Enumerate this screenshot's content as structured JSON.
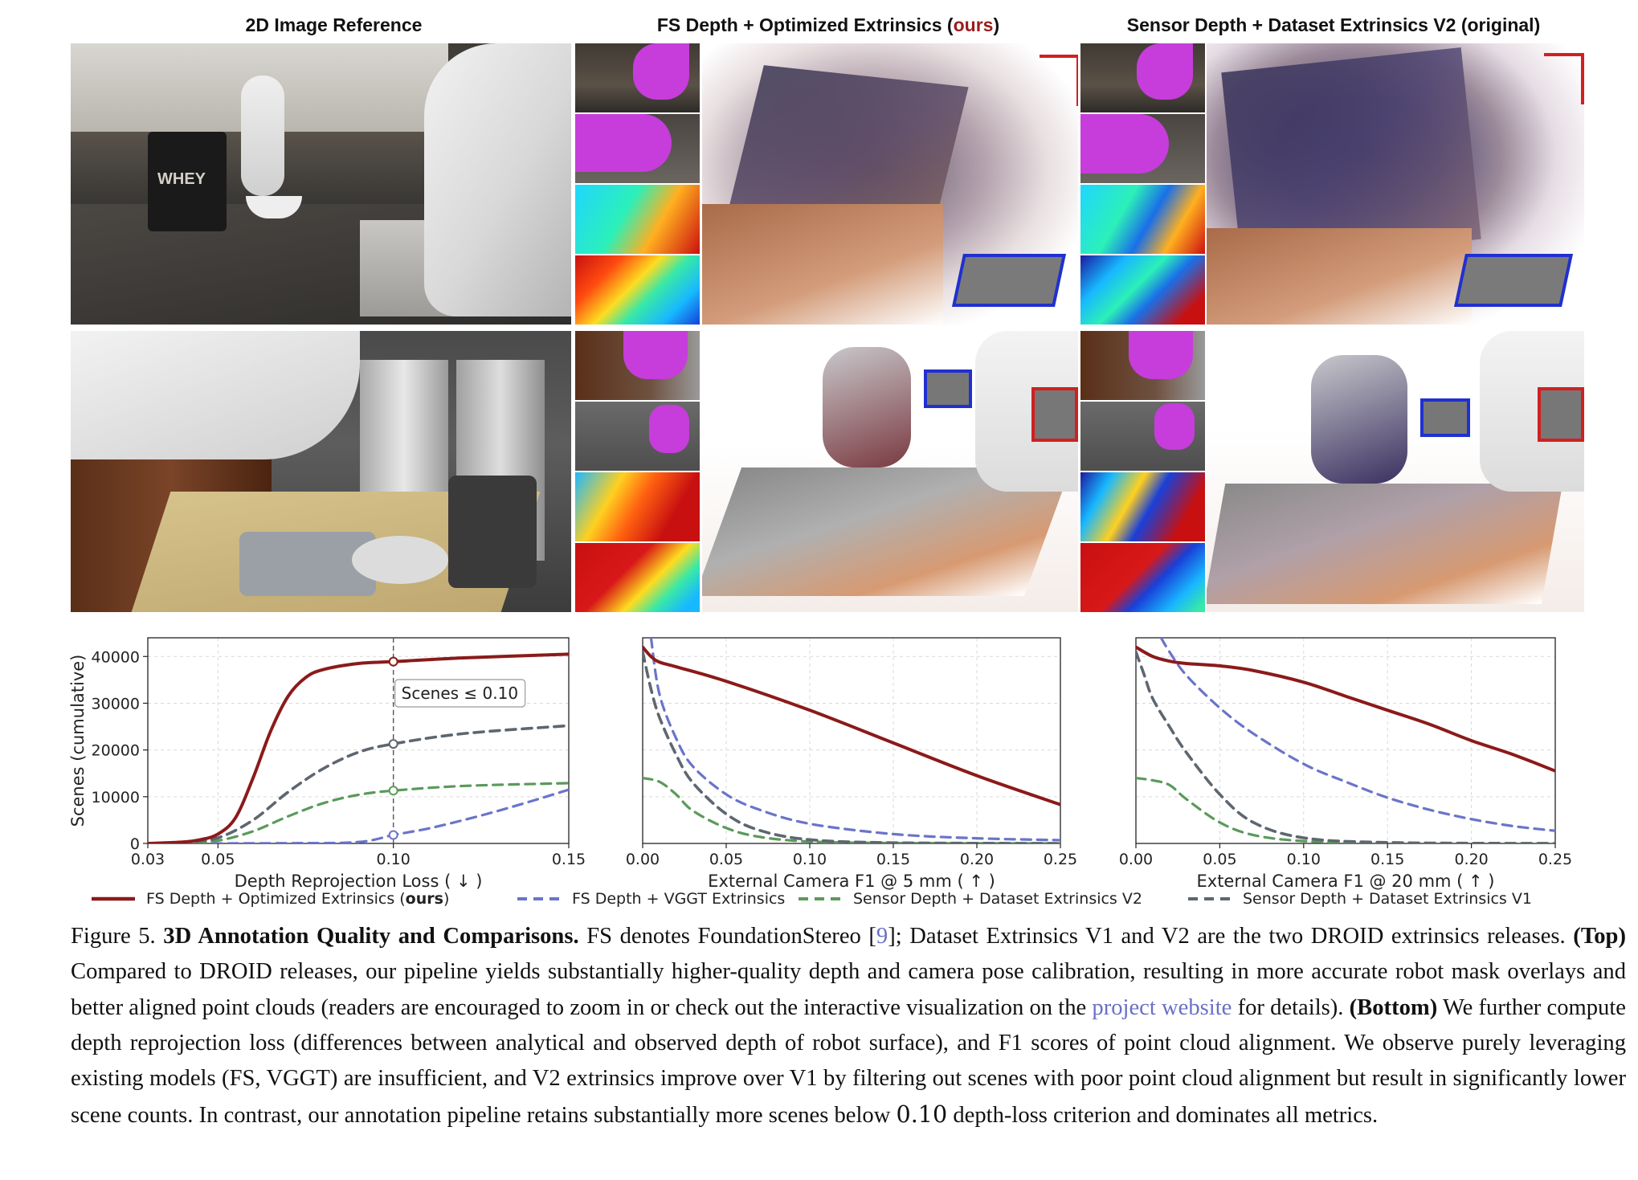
{
  "columns": {
    "col1": "2D Image Reference",
    "col2_prefix": "FS Depth + Optimized Extrinsics (",
    "col2_ours": "ours",
    "col2_suffix": ")",
    "col3": "Sensor Depth + Dataset Extrinsics V2 (original)"
  },
  "photo_text": {
    "whey_label": "WHEY"
  },
  "colors": {
    "ours": "#8b1a1a",
    "vggt": "#6b74c9",
    "v2": "#5a9a5a",
    "v1": "#5e6670"
  },
  "chart_data": [
    {
      "type": "line",
      "xlabel": "Depth Reprojection Loss ( ↓ )",
      "ylabel": "Scenes (cumulative)",
      "xlim": [
        0.03,
        0.15
      ],
      "ylim": [
        0,
        44000
      ],
      "xticks": [
        "0.03",
        "0.05",
        "0.10",
        "0.15"
      ],
      "xtick_values": [
        0.03,
        0.05,
        0.1,
        0.15
      ],
      "yticks": [
        "0",
        "10000",
        "20000",
        "30000",
        "40000"
      ],
      "ytick_values": [
        0,
        10000,
        20000,
        30000,
        40000
      ],
      "grid": true,
      "annotation": {
        "text": "Scenes ≤ 0.10",
        "x": 0.1
      },
      "series": [
        {
          "key": "ours",
          "x": [
            0.03,
            0.04,
            0.045,
            0.05,
            0.055,
            0.06,
            0.065,
            0.07,
            0.075,
            0.08,
            0.09,
            0.1,
            0.12,
            0.15
          ],
          "y": [
            0,
            300,
            800,
            2000,
            5500,
            14000,
            24000,
            31500,
            35500,
            37200,
            38500,
            38900,
            39700,
            40500
          ]
        },
        {
          "key": "vggt",
          "x": [
            0.03,
            0.07,
            0.09,
            0.1,
            0.11,
            0.12,
            0.13,
            0.14,
            0.15
          ],
          "y": [
            0,
            50,
            300,
            1800,
            3200,
            5000,
            7000,
            9200,
            11500
          ]
        },
        {
          "key": "v2",
          "x": [
            0.03,
            0.04,
            0.05,
            0.06,
            0.07,
            0.08,
            0.09,
            0.1,
            0.12,
            0.15
          ],
          "y": [
            0,
            100,
            600,
            2600,
            5800,
            8600,
            10400,
            11300,
            12300,
            12900
          ]
        },
        {
          "key": "v1",
          "x": [
            0.03,
            0.04,
            0.05,
            0.06,
            0.07,
            0.08,
            0.09,
            0.1,
            0.12,
            0.15
          ],
          "y": [
            0,
            200,
            1200,
            5000,
            11000,
            16000,
            19500,
            21300,
            23500,
            25200
          ]
        }
      ],
      "markers": [
        {
          "key": "ours",
          "y": 38900
        },
        {
          "key": "v1",
          "y": 21300
        },
        {
          "key": "v2",
          "y": 11300
        },
        {
          "key": "vggt",
          "y": 1800
        }
      ]
    },
    {
      "type": "line",
      "xlabel": "External Camera F1 @ 5 mm ( ↑ )",
      "xlim": [
        0,
        0.25
      ],
      "ylim": [
        0,
        44000
      ],
      "xticks": [
        "0.00",
        "0.05",
        "0.10",
        "0.15",
        "0.20",
        "0.25"
      ],
      "xtick_values": [
        0,
        0.05,
        0.1,
        0.15,
        0.2,
        0.25
      ],
      "grid": true,
      "series": [
        {
          "key": "ours",
          "x": [
            0,
            0.005,
            0.01,
            0.02,
            0.05,
            0.1,
            0.15,
            0.2,
            0.25
          ],
          "y": [
            42000,
            40000,
            38800,
            37800,
            34700,
            28500,
            21500,
            14500,
            8300
          ]
        },
        {
          "key": "vggt",
          "x": [
            0.005,
            0.01,
            0.02,
            0.03,
            0.05,
            0.07,
            0.1,
            0.15,
            0.2,
            0.25
          ],
          "y": [
            44000,
            32000,
            22500,
            16500,
            10500,
            7200,
            4200,
            2000,
            1100,
            700
          ]
        },
        {
          "key": "v2",
          "x": [
            0,
            0.01,
            0.02,
            0.03,
            0.05,
            0.07,
            0.1,
            0.15,
            0.25
          ],
          "y": [
            14000,
            13200,
            10500,
            7000,
            3300,
            1400,
            400,
            80,
            0
          ]
        },
        {
          "key": "v1",
          "x": [
            0,
            0.005,
            0.01,
            0.02,
            0.03,
            0.05,
            0.07,
            0.1,
            0.15,
            0.25
          ],
          "y": [
            41000,
            33000,
            27000,
            19000,
            13000,
            6300,
            2800,
            800,
            150,
            0
          ]
        }
      ]
    },
    {
      "type": "line",
      "xlabel": "External Camera F1 @ 20 mm ( ↑ )",
      "xlim": [
        0,
        0.25
      ],
      "ylim": [
        0,
        44000
      ],
      "xticks": [
        "0.00",
        "0.05",
        "0.10",
        "0.15",
        "0.20",
        "0.25"
      ],
      "xtick_values": [
        0,
        0.05,
        0.1,
        0.15,
        0.2,
        0.25
      ],
      "grid": true,
      "series": [
        {
          "key": "ours",
          "x": [
            0,
            0.01,
            0.02,
            0.03,
            0.05,
            0.07,
            0.1,
            0.125,
            0.15,
            0.175,
            0.2,
            0.225,
            0.25
          ],
          "y": [
            42000,
            40000,
            39000,
            38500,
            38000,
            37000,
            34500,
            31500,
            28500,
            25500,
            22000,
            19000,
            15500
          ]
        },
        {
          "key": "vggt",
          "x": [
            0.015,
            0.02,
            0.03,
            0.05,
            0.07,
            0.1,
            0.125,
            0.15,
            0.175,
            0.2,
            0.225,
            0.25
          ],
          "y": [
            44000,
            41000,
            36000,
            29000,
            23500,
            17000,
            13200,
            9800,
            7200,
            5200,
            3700,
            2700
          ]
        },
        {
          "key": "v2",
          "x": [
            0,
            0.01,
            0.02,
            0.03,
            0.05,
            0.07,
            0.1,
            0.15,
            0.25
          ],
          "y": [
            14000,
            13500,
            12500,
            9500,
            4500,
            1800,
            500,
            100,
            0
          ]
        },
        {
          "key": "v1",
          "x": [
            0,
            0.005,
            0.01,
            0.02,
            0.03,
            0.05,
            0.07,
            0.1,
            0.15,
            0.25
          ],
          "y": [
            41000,
            36000,
            31000,
            25000,
            19500,
            10500,
            4500,
            1200,
            200,
            0
          ]
        }
      ]
    }
  ],
  "legend": [
    {
      "key": "ours",
      "prefix": "FS Depth + Optimized Extrinsics (",
      "bold": "ours",
      "suffix": ")"
    },
    {
      "key": "vggt",
      "prefix": "FS Depth + VGGT Extrinsics",
      "bold": "",
      "suffix": ""
    },
    {
      "key": "v2",
      "prefix": "Sensor Depth + Dataset Extrinsics V2",
      "bold": "",
      "suffix": ""
    },
    {
      "key": "v1",
      "prefix": "Sensor Depth + Dataset Extrinsics V1",
      "bold": "",
      "suffix": ""
    }
  ],
  "caption": {
    "fig_label": "Figure 5.",
    "title": "3D Annotation Quality and Comparisons.",
    "s1": "FS denotes FoundationStereo [",
    "cite": "9",
    "s2": "]; Dataset Extrinsics V1 and V2 are the two DROID extrinsics releases.",
    "top_label": "(Top)",
    "s3": "Compared to DROID releases, our pipeline yields substantially higher-quality depth and camera pose calibration, resulting in more accurate robot mask overlays and better aligned point clouds (readers are encouraged to zoom in or check out the interactive visualization on the",
    "link": "project website",
    "s4": "for details).",
    "bottom_label": "(Bottom)",
    "s5": "We further compute depth reprojection loss (differences between analytical and observed depth of robot surface), and F1 scores of point cloud alignment. We observe purely leveraging existing models (FS, VGGT) are insufficient, and V2 extrinsics improve over V1 by filtering out scenes with poor point cloud alignment but result in significantly lower scene counts. In contrast, our annotation pipeline retains substantially more scenes below",
    "num": "0.10",
    "s6": "depth-loss criterion and dominates all metrics."
  }
}
